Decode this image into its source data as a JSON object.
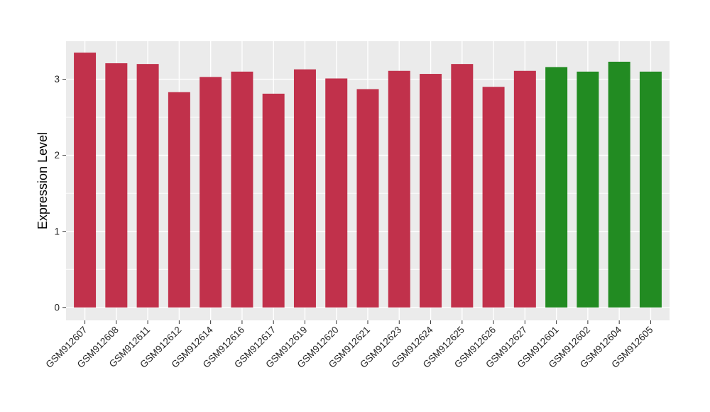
{
  "chart_data": {
    "type": "bar",
    "title": "",
    "xlabel": "",
    "ylabel": "Expression Level",
    "legend_position": "none",
    "categories": [
      "GSM912607",
      "GSM912608",
      "GSM912611",
      "GSM912612",
      "GSM912614",
      "GSM912616",
      "GSM912617",
      "GSM912619",
      "GSM912620",
      "GSM912621",
      "GSM912623",
      "GSM912624",
      "GSM912625",
      "GSM912626",
      "GSM912627",
      "GSM912601",
      "GSM912602",
      "GSM912604",
      "GSM912605"
    ],
    "values": [
      3.35,
      3.21,
      3.2,
      2.83,
      3.03,
      3.1,
      2.81,
      3.13,
      3.01,
      2.87,
      3.11,
      3.07,
      3.2,
      2.9,
      3.11,
      3.16,
      3.1,
      3.23,
      3.1
    ],
    "bar_colors": [
      "#C1314B",
      "#C1314B",
      "#C1314B",
      "#C1314B",
      "#C1314B",
      "#C1314B",
      "#C1314B",
      "#C1314B",
      "#C1314B",
      "#C1314B",
      "#C1314B",
      "#C1314B",
      "#C1314B",
      "#C1314B",
      "#C1314B",
      "#228B22",
      "#228B22",
      "#228B22",
      "#228B22"
    ],
    "group_colors": {
      "first_group": "#C1314B",
      "second_group": "#228B22"
    },
    "yticks": [
      0,
      1,
      2,
      3
    ],
    "minor_yticks": [
      0.5,
      1.5,
      2.5
    ],
    "ylim": [
      -0.17,
      3.5
    ],
    "x_tick_rotation_deg": 45,
    "grid": true,
    "panel_background": "#EBEBEB",
    "gridline_color": "#FFFFFF",
    "axis_text_color": "#262626",
    "axis_label_color": "#000000",
    "tick_mark_color": "#333333"
  }
}
